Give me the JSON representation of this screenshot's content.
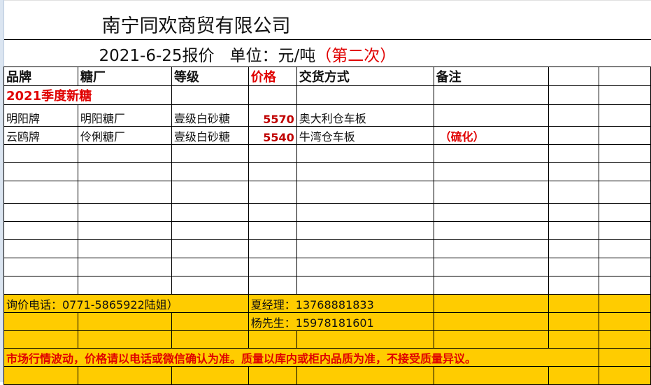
{
  "title": "南宁同欢商贸有限公司",
  "subtitle": {
    "main": "2021-6-25报价   单位：元/吨",
    "suffix": "（第二次）"
  },
  "headers": [
    "品牌",
    "糖厂",
    "等级",
    "价格",
    "交货方式",
    "备注"
  ],
  "section": "2021季度新糖",
  "rows": [
    {
      "brand": "明阳牌",
      "factory": "明阳糖厂",
      "grade": "壹级白砂糖",
      "price": "5570",
      "delivery": "奥大利仓车板",
      "remark": ""
    },
    {
      "brand": "云鸥牌",
      "factory": "伶俐糖厂",
      "grade": "壹级白砂糖",
      "price": "5540",
      "delivery": "牛湾仓车板",
      "remark": "（硫化）"
    }
  ],
  "contact": {
    "inquiry": "询价电话：0771-5865922陆姐）",
    "manager1": "夏经理：13768881833",
    "manager2": "杨先生：15978181601"
  },
  "notice": "市场行情波动，价格请以电话或微信确认为准。质量以库内或柜内品质为准，不接受质量异议。",
  "colors": {
    "accent_red": "#e00000",
    "footer_yellow": "#ffcc00"
  }
}
